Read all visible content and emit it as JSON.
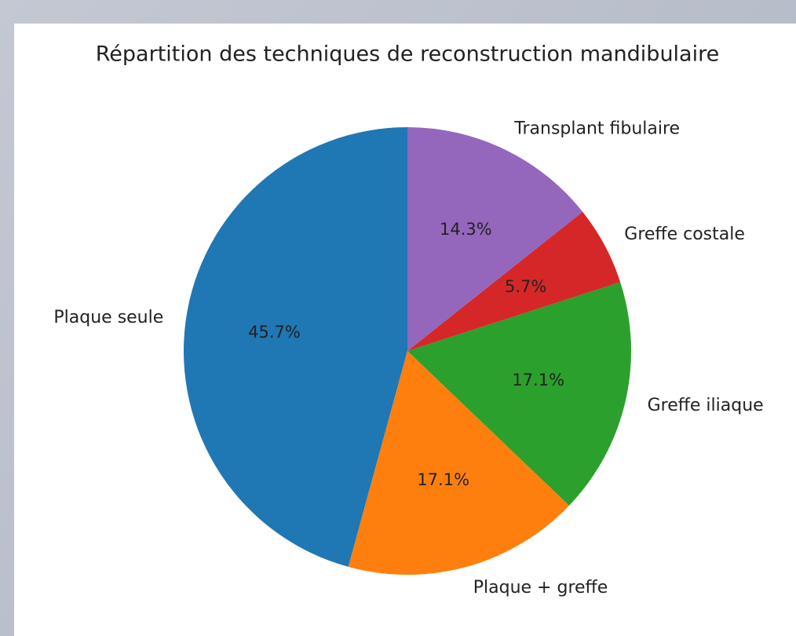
{
  "chart_data": {
    "type": "pie",
    "title": "Répartition des techniques de reconstruction mandibulaire",
    "categories": [
      "Plaque seule",
      "Plaque + greffe",
      "Greffe iliaque",
      "Greffe costale",
      "Transplant fibulaire"
    ],
    "values": [
      45.7,
      17.1,
      17.1,
      5.7,
      14.3
    ],
    "value_labels": [
      "45.7%",
      "17.1%",
      "17.1%",
      "5.7%",
      "14.3%"
    ],
    "colors": [
      "#1f77b4",
      "#ff7f0e",
      "#2ca02c",
      "#d62728",
      "#9467bd"
    ]
  }
}
